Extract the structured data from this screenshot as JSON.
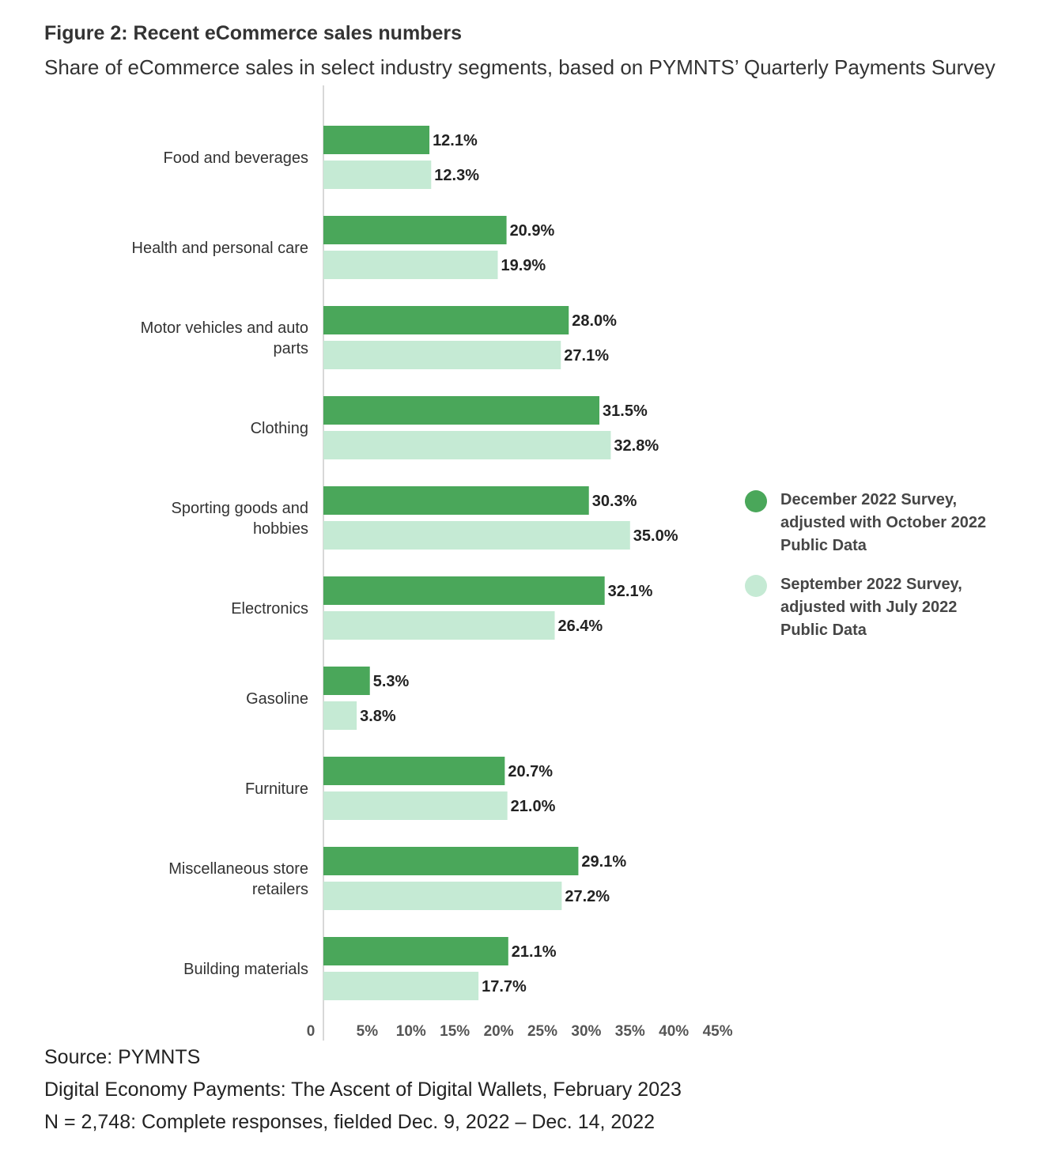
{
  "header": {
    "title": "Figure 2: Recent eCommerce sales numbers",
    "subtitle": "Share of eCommerce sales in select industry segments, based on PYMNTS’ Quarterly Payments Survey"
  },
  "colors": {
    "dark_green": "#4aa75a",
    "light_green": "#c5ead4",
    "axis": "#cccccc"
  },
  "chart_data": {
    "type": "bar",
    "orientation": "horizontal",
    "title": "Figure 2: Recent eCommerce sales numbers",
    "subtitle": "Share of eCommerce sales in select industry segments, based on PYMNTS’ Quarterly Payments Survey",
    "categories": [
      [
        "Food and beverages"
      ],
      [
        "Health and personal care"
      ],
      [
        "Motor vehicles and auto",
        "parts"
      ],
      [
        "Clothing"
      ],
      [
        "Sporting goods and",
        "hobbies"
      ],
      [
        "Electronics"
      ],
      [
        "Gasoline"
      ],
      [
        "Furniture"
      ],
      [
        "Miscellaneous store",
        "retailers"
      ],
      [
        "Building materials"
      ]
    ],
    "series": [
      {
        "name": "December 2022 Survey, adjusted with October 2022 Public Data",
        "legend_lines": [
          "December 2022 Survey,",
          "adjusted with October 2022",
          "Public Data"
        ],
        "color": "#4aa75a",
        "values": [
          12.1,
          20.9,
          28.0,
          31.5,
          30.3,
          32.1,
          5.3,
          20.7,
          29.1,
          21.1
        ],
        "labels": [
          "12.1%",
          "20.9%",
          "28.0%",
          "31.5%",
          "30.3%",
          "32.1%",
          "5.3%",
          "20.7%",
          "29.1%",
          "21.1%"
        ]
      },
      {
        "name": "September 2022 Survey, adjusted with July 2022 Public Data",
        "legend_lines": [
          "September 2022 Survey,",
          "adjusted with July 2022",
          "Public Data"
        ],
        "color": "#c5ead4",
        "values": [
          12.3,
          19.9,
          27.1,
          32.8,
          35.0,
          26.4,
          3.8,
          21.0,
          27.2,
          17.7
        ],
        "labels": [
          "12.3%",
          "19.9%",
          "27.1%",
          "32.8%",
          "35.0%",
          "26.4%",
          "3.8%",
          "21.0%",
          "27.2%",
          "17.7%"
        ]
      }
    ],
    "x_ticks": [
      0,
      5,
      10,
      15,
      20,
      25,
      30,
      35,
      40,
      45
    ],
    "x_tick_labels": [
      "0",
      "5%",
      "10%",
      "15%",
      "20%",
      "25%",
      "30%",
      "35%",
      "40%",
      "45%"
    ],
    "xlim": [
      0,
      45
    ],
    "xlabel": "",
    "ylabel": "",
    "grid": false,
    "legend_position": "right"
  },
  "footer": {
    "source": "Source: PYMNTS",
    "report": "Digital Economy Payments: The Ascent of Digital Wallets, February 2023",
    "sample": "N = 2,748: Complete responses, fielded Dec. 9, 2022 – Dec. 14, 2022"
  }
}
